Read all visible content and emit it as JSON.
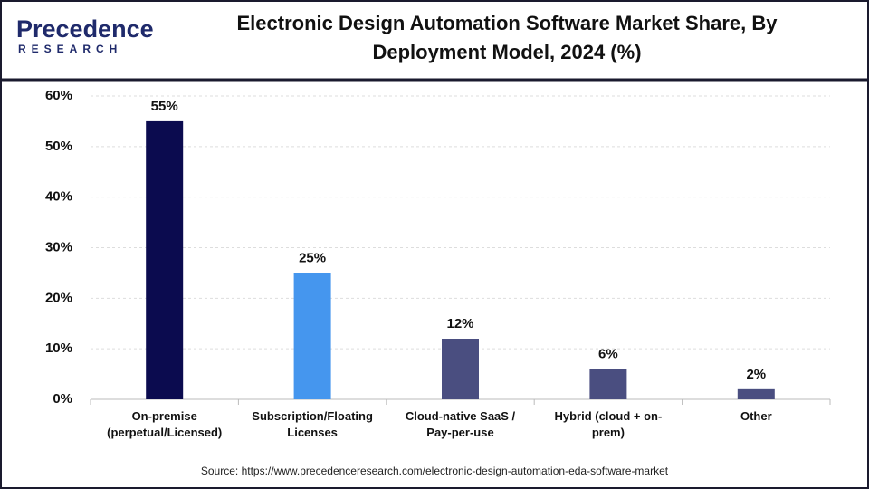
{
  "logo": {
    "name": "Precedence",
    "tagline": "RESEARCH"
  },
  "source": "Source: https://www.precedenceresearch.com/electronic-design-automation-eda-software-market",
  "chart_data": {
    "type": "bar",
    "title": "Electronic Design Automation Software Market Share, By Deployment Model, 2024 (%)",
    "categories": [
      "On-premise (perpetual/Licensed)",
      "Subscription/Floating Licenses",
      "Cloud-native SaaS / Pay-per-use",
      "Hybrid (cloud + on-prem)",
      "Other"
    ],
    "values": [
      55,
      25,
      12,
      6,
      2
    ],
    "value_labels": [
      "55%",
      "25%",
      "12%",
      "6%",
      "2%"
    ],
    "colors": [
      "#0b0b4f",
      "#4596ee",
      "#4a4e80",
      "#4a4e80",
      "#4a4e80"
    ],
    "ylim": [
      0,
      60
    ],
    "yticks": [
      {
        "value": 0,
        "label": "0%"
      },
      {
        "value": 10,
        "label": "10%"
      },
      {
        "value": 20,
        "label": "20%"
      },
      {
        "value": 30,
        "label": "30%"
      },
      {
        "value": 40,
        "label": "40%"
      },
      {
        "value": 50,
        "label": "50%"
      },
      {
        "value": 60,
        "label": "60%"
      }
    ],
    "grid": true
  }
}
